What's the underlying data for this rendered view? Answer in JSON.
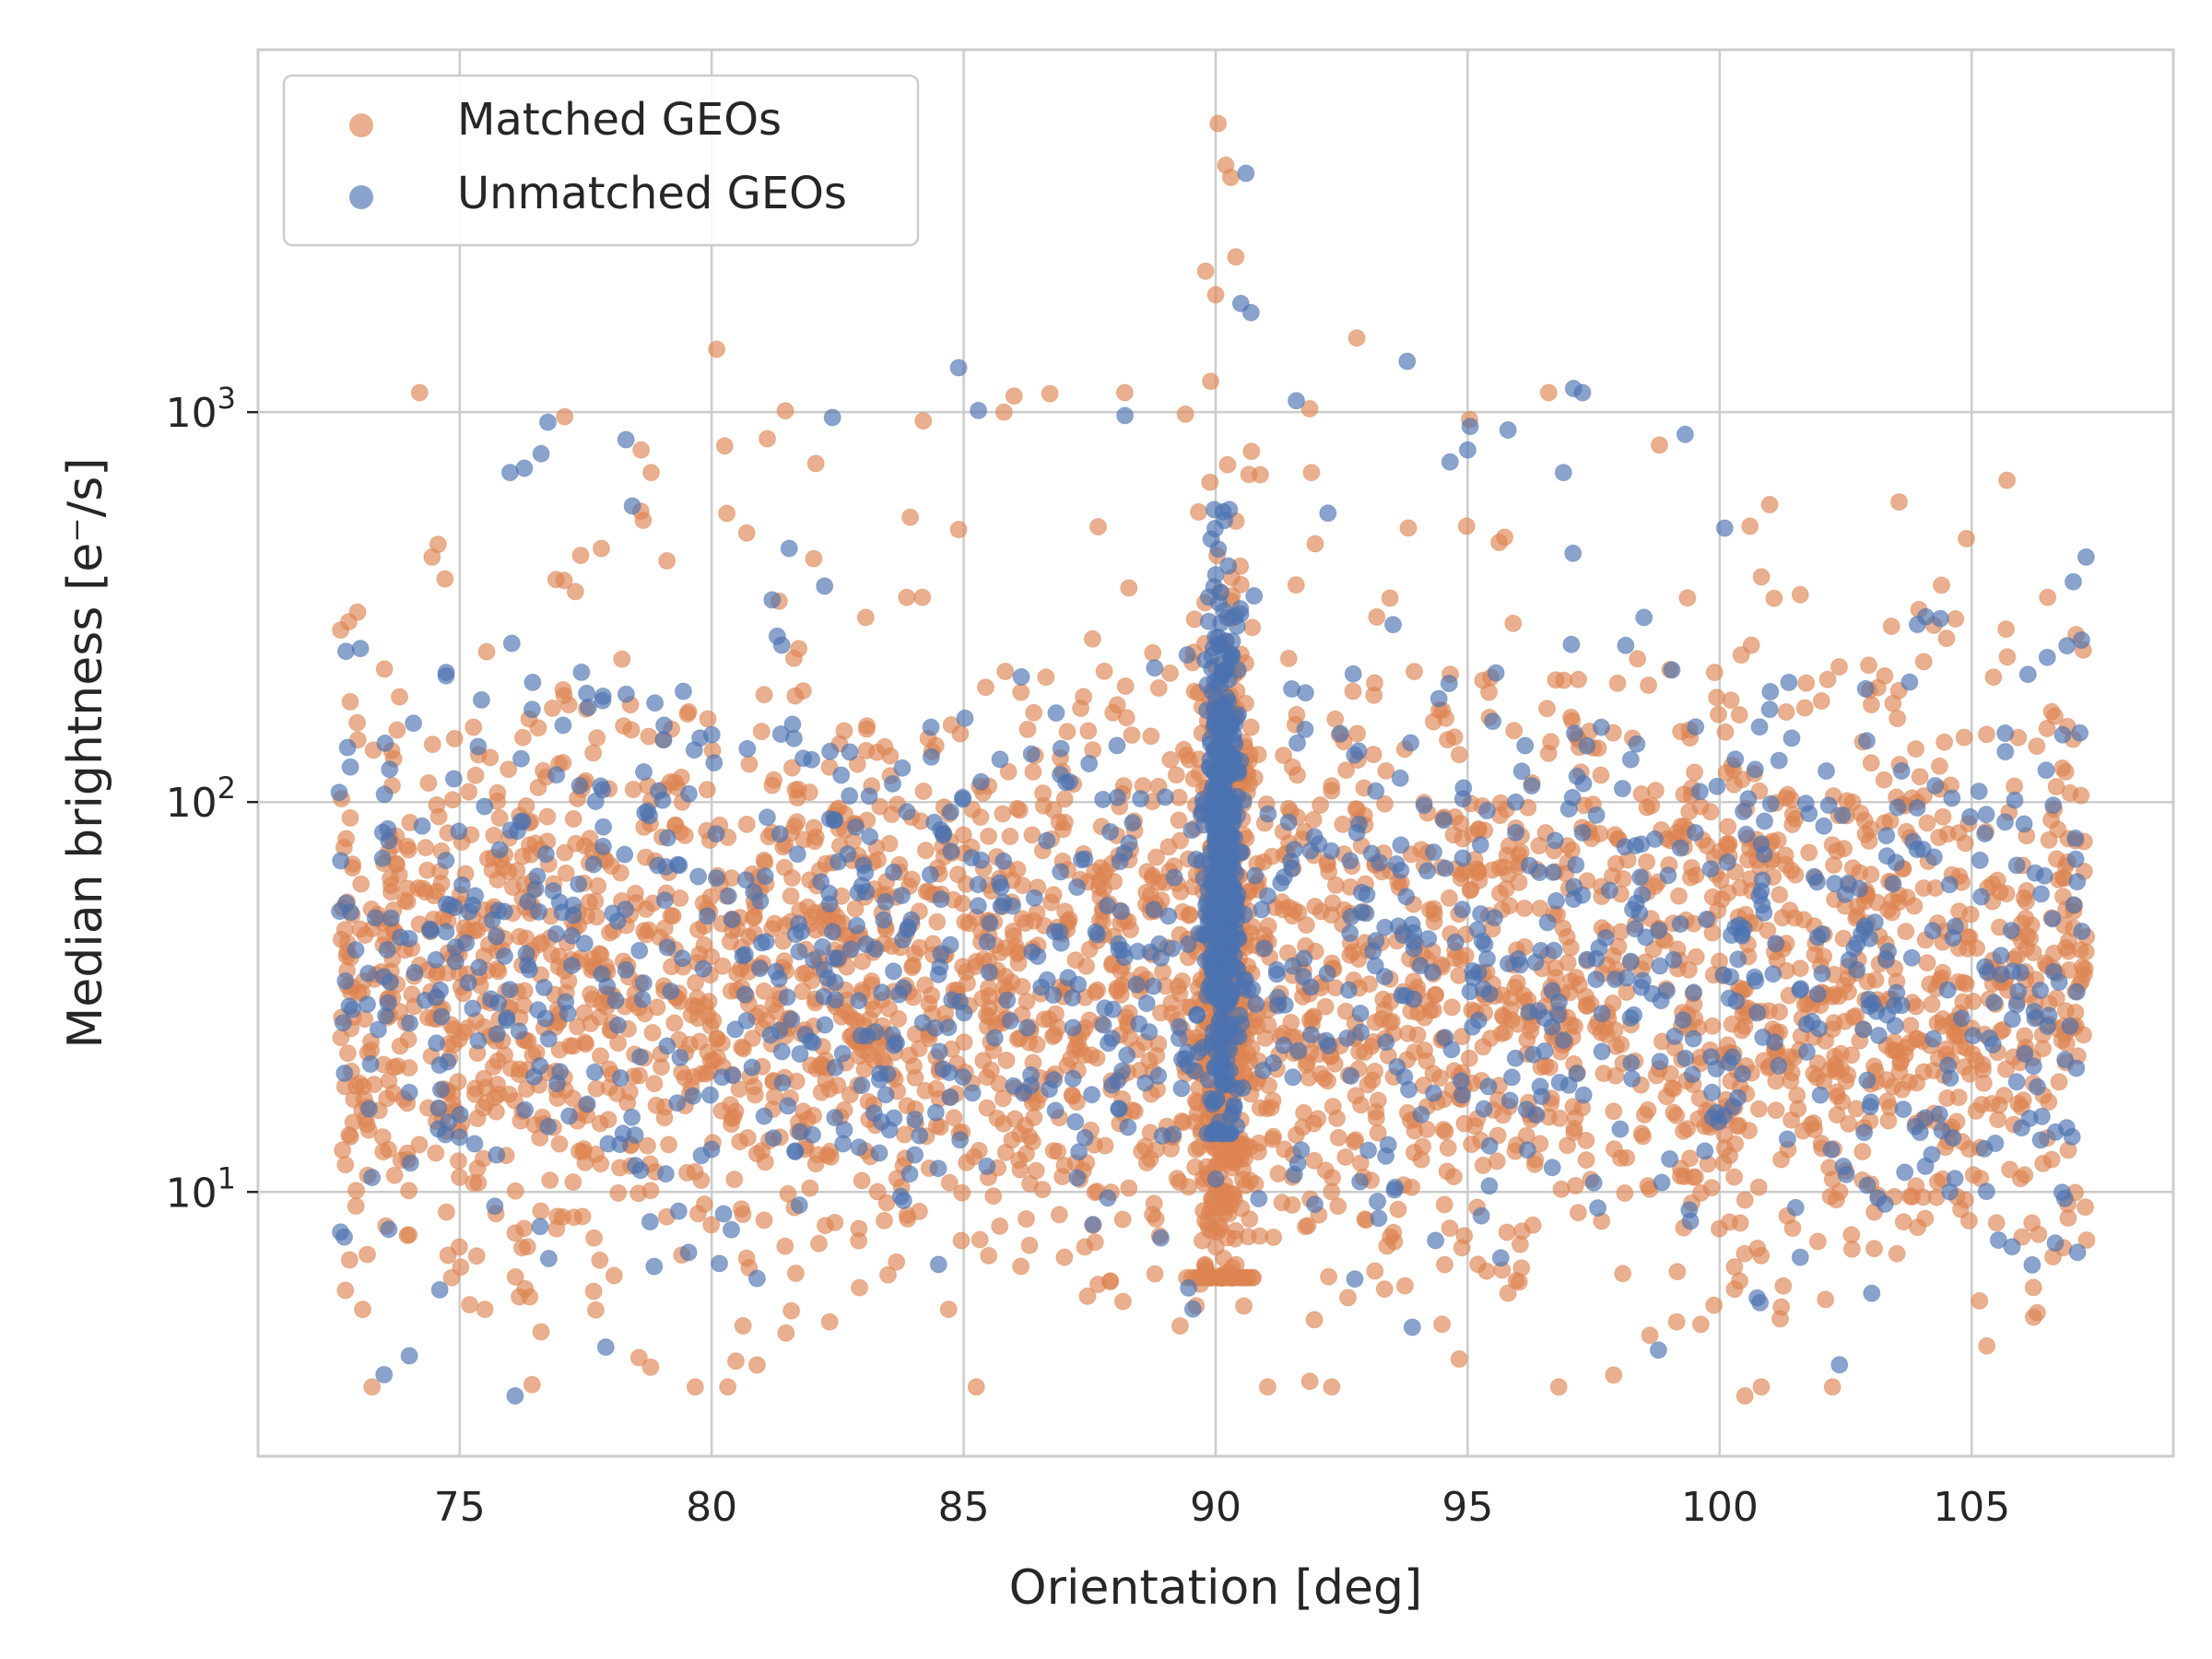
{
  "chart_data": {
    "type": "scatter",
    "title": "",
    "xlabel": "Orientation [deg]",
    "ylabel": "Median brightness [e⁻/s]",
    "xlim": [
      71,
      109
    ],
    "ylim": [
      2.1,
      8500
    ],
    "yscale": "log",
    "xticks": [
      75,
      80,
      85,
      90,
      95,
      100,
      105
    ],
    "xtick_labels": [
      "75",
      "80",
      "85",
      "90",
      "95",
      "100",
      "105"
    ],
    "yticks": [
      10,
      100,
      1000
    ],
    "ytick_labels": [
      {
        "base": "10",
        "exp": "1"
      },
      {
        "base": "10",
        "exp": "2"
      },
      {
        "base": "10",
        "exp": "3"
      }
    ],
    "grid": true,
    "legend_position": "top-left",
    "colors": {
      "matched": "#dd8452",
      "unmatched": "#4c72b0"
    },
    "series": [
      {
        "name": "Matched GEOs",
        "color": "#dd8452",
        "approx_count": 3400,
        "distribution": "Broad band across 72.5-107.3 deg, brightness mostly 10-100 e-/s (log-median ~33), strong narrow spike near 90 deg reaching to ~5500",
        "notable_points": [
          [
            90.05,
            5500
          ],
          [
            90.2,
            4300
          ],
          [
            90.3,
            4000
          ],
          [
            90.4,
            2500
          ],
          [
            89.8,
            2300
          ],
          [
            90.0,
            2000
          ],
          [
            92.8,
            1550
          ],
          [
            80.1,
            1450
          ],
          [
            86.0,
            1100
          ],
          [
            89.9,
            1200
          ],
          [
            85.8,
            1000
          ],
          [
            84.2,
            950
          ],
          [
            78.6,
            800
          ],
          [
            78.8,
            700
          ],
          [
            91.9,
            700
          ],
          [
            100.6,
            510
          ],
          [
            80.3,
            550
          ],
          [
            104.4,
            360
          ],
          [
            72.8,
            290
          ],
          [
            84.9,
            500
          ],
          [
            80.9,
            3.6
          ],
          [
            100.5,
            3.0
          ],
          [
            95.8,
            5.5
          ],
          [
            84.7,
            5.0
          ],
          [
            75.5,
            5.0
          ],
          [
            106.3,
            4.9
          ],
          [
            102.1,
            5.3
          ],
          [
            87.0,
            6.8
          ],
          [
            89.7,
            5.8
          ],
          [
            90.1,
            6.1
          ]
        ]
      },
      {
        "name": "Unmatched GEOs",
        "color": "#4c72b0",
        "approx_count": 1500,
        "distribution": "Broad band across 72.5-107.3 deg, brightness mostly 10-100 e-/s (log-median ~40), dense vertical column at ~90 deg spanning 14-400",
        "notable_points": [
          [
            90.6,
            4100
          ],
          [
            90.5,
            1900
          ],
          [
            90.7,
            1800
          ],
          [
            84.9,
            1300
          ],
          [
            93.8,
            1350
          ],
          [
            97.1,
            1150
          ],
          [
            88.2,
            980
          ],
          [
            91.6,
            1070
          ],
          [
            78.3,
            850
          ],
          [
            95.8,
            900
          ],
          [
            76.0,
            700
          ],
          [
            95.0,
            800
          ],
          [
            96.9,
            700
          ],
          [
            81.2,
            330
          ],
          [
            103.5,
            70
          ],
          [
            106.5,
            235
          ],
          [
            73.5,
            3.4
          ],
          [
            76.1,
            3.0
          ],
          [
            93.9,
            4.5
          ],
          [
            77.9,
            4.0
          ],
          [
            74.0,
            3.8
          ],
          [
            100.8,
            5.2
          ],
          [
            106.2,
            6.5
          ],
          [
            107.1,
            7.0
          ],
          [
            101.6,
            6.8
          ],
          [
            80.9,
            6.0
          ]
        ]
      }
    ]
  }
}
